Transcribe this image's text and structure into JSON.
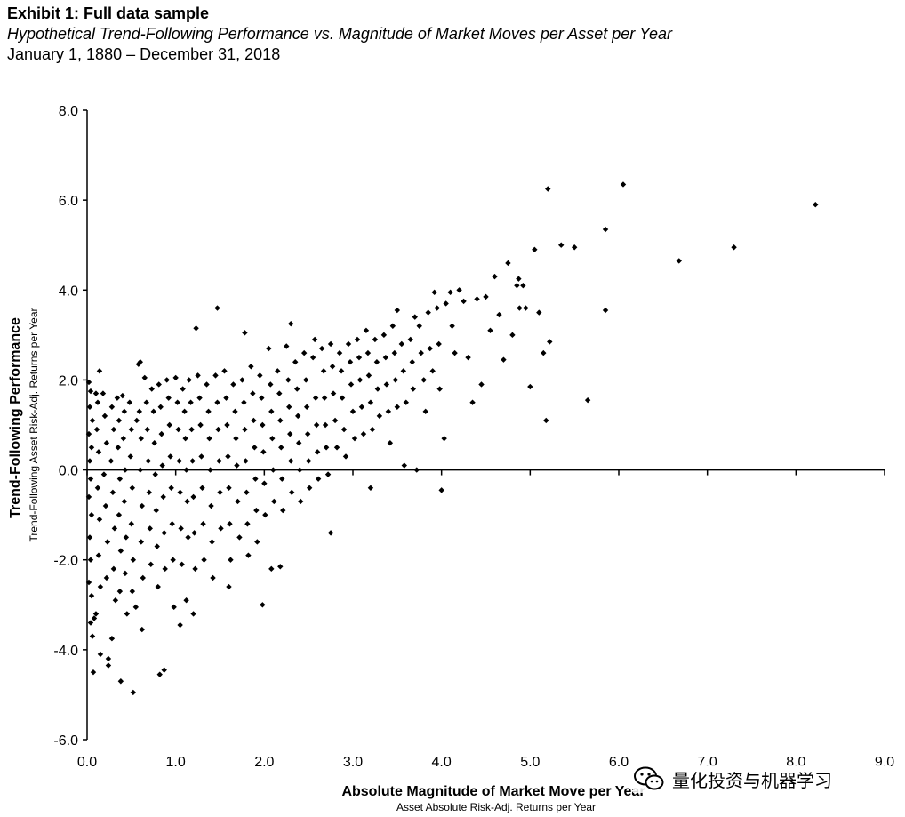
{
  "header": {
    "title": "Exhibit 1: Full data sample",
    "subtitle": "Hypothetical Trend-Following Performance vs. Magnitude of Market Moves per Asset per Year",
    "date_range": "January 1, 1880 – December 31, 2018"
  },
  "watermark": {
    "icon": "wechat-logo-icon",
    "text": "量化投资与机器学习"
  },
  "chart_data": {
    "type": "scatter",
    "xlabel": "Absolute Magnitude of Market Move per Year",
    "xlabel_sub": "Asset Absolute Risk-Adj. Returns per Year",
    "ylabel": "Trend-Following Performance",
    "ylabel_sub": "Trend-Following Asset Risk-Adj. Returns per Year",
    "xlim": [
      0,
      9
    ],
    "ylim": [
      -6,
      8
    ],
    "xticks": [
      "0.0",
      "1.0",
      "2.0",
      "3.0",
      "4.0",
      "5.0",
      "6.0",
      "7.0",
      "8.0",
      "9.0"
    ],
    "yticks": [
      "-6.0",
      "-4.0",
      "-2.0",
      "0.0",
      "2.0",
      "4.0",
      "6.0",
      "8.0"
    ],
    "grid": false,
    "legend": "none",
    "marker": "diamond",
    "color": "#000000",
    "points": [
      [
        0.02,
        1.95
      ],
      [
        0.04,
        1.75
      ],
      [
        0.03,
        1.4
      ],
      [
        0.06,
        1.1
      ],
      [
        0.02,
        0.8
      ],
      [
        0.05,
        0.5
      ],
      [
        0.03,
        0.2
      ],
      [
        0.04,
        -0.2
      ],
      [
        0.02,
        -0.6
      ],
      [
        0.05,
        -1.0
      ],
      [
        0.03,
        -1.5
      ],
      [
        0.04,
        -2.0
      ],
      [
        0.02,
        -2.5
      ],
      [
        0.05,
        -2.8
      ],
      [
        0.04,
        -3.4
      ],
      [
        0.06,
        -3.7
      ],
      [
        0.07,
        -4.5
      ],
      [
        0.08,
        -3.3
      ],
      [
        0.1,
        -3.2
      ],
      [
        0.1,
        1.7
      ],
      [
        0.12,
        1.5
      ],
      [
        0.14,
        2.2
      ],
      [
        0.11,
        0.9
      ],
      [
        0.13,
        0.4
      ],
      [
        0.12,
        -0.4
      ],
      [
        0.14,
        -1.1
      ],
      [
        0.13,
        -1.9
      ],
      [
        0.15,
        -2.6
      ],
      [
        0.15,
        -4.1
      ],
      [
        0.18,
        1.7
      ],
      [
        0.2,
        1.2
      ],
      [
        0.22,
        0.6
      ],
      [
        0.19,
        -0.1
      ],
      [
        0.21,
        -0.8
      ],
      [
        0.23,
        -1.6
      ],
      [
        0.22,
        -2.4
      ],
      [
        0.24,
        -4.2
      ],
      [
        0.24,
        -4.35
      ],
      [
        0.28,
        1.4
      ],
      [
        0.3,
        0.9
      ],
      [
        0.27,
        0.2
      ],
      [
        0.29,
        -0.5
      ],
      [
        0.31,
        -1.3
      ],
      [
        0.3,
        -2.2
      ],
      [
        0.32,
        -2.9
      ],
      [
        0.28,
        -3.75
      ],
      [
        0.34,
        1.6
      ],
      [
        0.36,
        1.1
      ],
      [
        0.35,
        0.5
      ],
      [
        0.37,
        -0.2
      ],
      [
        0.36,
        -1.0
      ],
      [
        0.38,
        -1.8
      ],
      [
        0.37,
        -2.7
      ],
      [
        0.38,
        -4.7
      ],
      [
        0.4,
        1.65
      ],
      [
        0.42,
        1.3
      ],
      [
        0.41,
        0.7
      ],
      [
        0.43,
        0.0
      ],
      [
        0.42,
        -0.7
      ],
      [
        0.44,
        -1.5
      ],
      [
        0.43,
        -2.3
      ],
      [
        0.45,
        -3.2
      ],
      [
        0.48,
        1.5
      ],
      [
        0.5,
        0.9
      ],
      [
        0.49,
        0.3
      ],
      [
        0.51,
        -0.4
      ],
      [
        0.5,
        -1.2
      ],
      [
        0.52,
        -2.0
      ],
      [
        0.51,
        -2.7
      ],
      [
        0.52,
        -4.95
      ],
      [
        0.55,
        -3.05
      ],
      [
        0.56,
        1.1
      ],
      [
        0.58,
        2.35
      ],
      [
        0.6,
        2.4
      ],
      [
        0.59,
        1.3
      ],
      [
        0.61,
        0.7
      ],
      [
        0.6,
        0.0
      ],
      [
        0.62,
        -0.8
      ],
      [
        0.61,
        -1.6
      ],
      [
        0.63,
        -2.4
      ],
      [
        0.62,
        -3.55
      ],
      [
        0.65,
        2.05
      ],
      [
        0.67,
        1.5
      ],
      [
        0.68,
        0.9
      ],
      [
        0.69,
        0.2
      ],
      [
        0.7,
        -0.5
      ],
      [
        0.71,
        -1.3
      ],
      [
        0.72,
        -2.1
      ],
      [
        0.73,
        1.8
      ],
      [
        0.75,
        1.3
      ],
      [
        0.76,
        0.6
      ],
      [
        0.77,
        -0.1
      ],
      [
        0.78,
        -0.9
      ],
      [
        0.79,
        -1.7
      ],
      [
        0.8,
        -2.6
      ],
      [
        0.82,
        -4.55
      ],
      [
        0.81,
        1.9
      ],
      [
        0.83,
        1.4
      ],
      [
        0.84,
        0.8
      ],
      [
        0.85,
        0.1
      ],
      [
        0.86,
        -0.6
      ],
      [
        0.87,
        -1.4
      ],
      [
        0.88,
        -2.2
      ],
      [
        0.87,
        -4.45
      ],
      [
        0.9,
        2.0
      ],
      [
        0.92,
        1.6
      ],
      [
        0.93,
        1.0
      ],
      [
        0.94,
        0.3
      ],
      [
        0.95,
        -0.4
      ],
      [
        0.96,
        -1.2
      ],
      [
        0.97,
        -2.0
      ],
      [
        0.98,
        -3.05
      ],
      [
        1.0,
        2.05
      ],
      [
        1.02,
        1.5
      ],
      [
        1.03,
        0.9
      ],
      [
        1.04,
        0.2
      ],
      [
        1.05,
        -0.5
      ],
      [
        1.06,
        -1.3
      ],
      [
        1.07,
        -2.1
      ],
      [
        1.05,
        -3.45
      ],
      [
        1.08,
        1.8
      ],
      [
        1.1,
        1.3
      ],
      [
        1.11,
        0.7
      ],
      [
        1.12,
        0.0
      ],
      [
        1.13,
        -0.7
      ],
      [
        1.14,
        -1.5
      ],
      [
        1.12,
        -2.9
      ],
      [
        1.15,
        2.0
      ],
      [
        1.17,
        1.5
      ],
      [
        1.18,
        0.9
      ],
      [
        1.19,
        0.2
      ],
      [
        1.2,
        -0.6
      ],
      [
        1.21,
        -1.4
      ],
      [
        1.22,
        -2.2
      ],
      [
        1.2,
        -3.2
      ],
      [
        1.23,
        3.15
      ],
      [
        1.25,
        2.1
      ],
      [
        1.27,
        1.6
      ],
      [
        1.28,
        1.0
      ],
      [
        1.29,
        0.3
      ],
      [
        1.3,
        -0.4
      ],
      [
        1.31,
        -1.2
      ],
      [
        1.32,
        -2.0
      ],
      [
        1.35,
        1.9
      ],
      [
        1.37,
        1.3
      ],
      [
        1.38,
        0.7
      ],
      [
        1.39,
        0.0
      ],
      [
        1.4,
        -0.8
      ],
      [
        1.41,
        -1.6
      ],
      [
        1.42,
        -2.4
      ],
      [
        1.47,
        3.6
      ],
      [
        1.45,
        2.1
      ],
      [
        1.47,
        1.5
      ],
      [
        1.48,
        0.9
      ],
      [
        1.49,
        0.2
      ],
      [
        1.5,
        -0.5
      ],
      [
        1.51,
        -1.3
      ],
      [
        1.55,
        2.2
      ],
      [
        1.57,
        1.6
      ],
      [
        1.58,
        1.0
      ],
      [
        1.59,
        0.3
      ],
      [
        1.6,
        -0.4
      ],
      [
        1.61,
        -1.2
      ],
      [
        1.62,
        -2.0
      ],
      [
        1.6,
        -2.6
      ],
      [
        1.65,
        1.9
      ],
      [
        1.67,
        1.3
      ],
      [
        1.68,
        0.7
      ],
      [
        1.69,
        0.1
      ],
      [
        1.7,
        -0.7
      ],
      [
        1.72,
        -1.5
      ],
      [
        1.75,
        2.0
      ],
      [
        1.77,
        1.5
      ],
      [
        1.78,
        0.9
      ],
      [
        1.79,
        0.2
      ],
      [
        1.8,
        -0.5
      ],
      [
        1.81,
        -1.2
      ],
      [
        1.82,
        -1.9
      ],
      [
        1.78,
        3.05
      ],
      [
        1.85,
        2.3
      ],
      [
        1.87,
        1.7
      ],
      [
        1.88,
        1.1
      ],
      [
        1.89,
        0.5
      ],
      [
        1.9,
        -0.2
      ],
      [
        1.91,
        -0.9
      ],
      [
        1.92,
        -1.6
      ],
      [
        1.95,
        2.1
      ],
      [
        1.97,
        1.6
      ],
      [
        1.98,
        1.0
      ],
      [
        1.99,
        0.4
      ],
      [
        2.0,
        -0.3
      ],
      [
        2.01,
        -1.0
      ],
      [
        1.98,
        -3.0
      ],
      [
        2.05,
        2.7
      ],
      [
        2.07,
        1.9
      ],
      [
        2.08,
        1.3
      ],
      [
        2.09,
        0.7
      ],
      [
        2.1,
        0.0
      ],
      [
        2.11,
        -0.7
      ],
      [
        2.08,
        -2.2
      ],
      [
        2.15,
        2.2
      ],
      [
        2.17,
        1.7
      ],
      [
        2.18,
        1.1
      ],
      [
        2.19,
        0.5
      ],
      [
        2.2,
        -0.2
      ],
      [
        2.21,
        -0.9
      ],
      [
        2.18,
        -2.15
      ],
      [
        2.25,
        2.75
      ],
      [
        2.27,
        2.0
      ],
      [
        2.28,
        1.4
      ],
      [
        2.29,
        0.8
      ],
      [
        2.3,
        0.2
      ],
      [
        2.31,
        -0.5
      ],
      [
        2.3,
        3.25
      ],
      [
        2.35,
        2.4
      ],
      [
        2.37,
        1.8
      ],
      [
        2.38,
        1.2
      ],
      [
        2.39,
        0.6
      ],
      [
        2.4,
        0.0
      ],
      [
        2.41,
        -0.7
      ],
      [
        2.45,
        2.6
      ],
      [
        2.47,
        2.0
      ],
      [
        2.48,
        1.4
      ],
      [
        2.49,
        0.8
      ],
      [
        2.5,
        0.2
      ],
      [
        2.51,
        -0.4
      ],
      [
        2.55,
        2.5
      ],
      [
        2.57,
        2.9
      ],
      [
        2.58,
        1.6
      ],
      [
        2.59,
        1.0
      ],
      [
        2.6,
        0.4
      ],
      [
        2.61,
        -0.2
      ],
      [
        2.65,
        2.7
      ],
      [
        2.67,
        2.2
      ],
      [
        2.68,
        1.6
      ],
      [
        2.69,
        1.0
      ],
      [
        2.7,
        0.5
      ],
      [
        2.72,
        -0.1
      ],
      [
        2.75,
        -1.4
      ],
      [
        2.75,
        2.8
      ],
      [
        2.77,
        2.3
      ],
      [
        2.78,
        1.7
      ],
      [
        2.8,
        1.1
      ],
      [
        2.82,
        0.5
      ],
      [
        2.85,
        2.6
      ],
      [
        2.87,
        2.2
      ],
      [
        2.88,
        1.6
      ],
      [
        2.9,
        0.9
      ],
      [
        2.92,
        0.3
      ],
      [
        2.95,
        2.8
      ],
      [
        2.97,
        2.4
      ],
      [
        2.98,
        1.9
      ],
      [
        3.0,
        1.3
      ],
      [
        3.02,
        0.7
      ],
      [
        3.05,
        2.9
      ],
      [
        3.07,
        2.5
      ],
      [
        3.08,
        2.0
      ],
      [
        3.1,
        1.4
      ],
      [
        3.12,
        0.8
      ],
      [
        3.15,
        3.1
      ],
      [
        3.17,
        2.6
      ],
      [
        3.18,
        2.1
      ],
      [
        3.2,
        1.5
      ],
      [
        3.22,
        0.9
      ],
      [
        3.2,
        -0.4
      ],
      [
        3.25,
        2.9
      ],
      [
        3.27,
        2.4
      ],
      [
        3.28,
        1.8
      ],
      [
        3.3,
        1.2
      ],
      [
        3.35,
        3.0
      ],
      [
        3.37,
        2.5
      ],
      [
        3.38,
        1.9
      ],
      [
        3.4,
        1.3
      ],
      [
        3.42,
        0.6
      ],
      [
        3.45,
        3.2
      ],
      [
        3.47,
        2.6
      ],
      [
        3.48,
        2.0
      ],
      [
        3.5,
        1.4
      ],
      [
        3.5,
        3.55
      ],
      [
        3.55,
        2.8
      ],
      [
        3.57,
        2.2
      ],
      [
        3.6,
        1.5
      ],
      [
        3.58,
        0.1
      ],
      [
        3.65,
        2.9
      ],
      [
        3.67,
        2.4
      ],
      [
        3.68,
        1.8
      ],
      [
        3.7,
        3.4
      ],
      [
        3.72,
        0.0
      ],
      [
        3.75,
        3.2
      ],
      [
        3.77,
        2.6
      ],
      [
        3.8,
        2.0
      ],
      [
        3.82,
        1.3
      ],
      [
        3.85,
        3.5
      ],
      [
        3.87,
        2.7
      ],
      [
        3.9,
        2.2
      ],
      [
        3.92,
        3.95
      ],
      [
        3.95,
        3.6
      ],
      [
        3.97,
        2.8
      ],
      [
        3.98,
        1.8
      ],
      [
        4.0,
        -0.45
      ],
      [
        4.05,
        3.7
      ],
      [
        4.03,
        0.7
      ],
      [
        4.1,
        3.95
      ],
      [
        4.12,
        3.2
      ],
      [
        4.15,
        2.6
      ],
      [
        4.2,
        4.0
      ],
      [
        4.25,
        3.75
      ],
      [
        4.3,
        2.5
      ],
      [
        4.35,
        1.5
      ],
      [
        4.4,
        3.8
      ],
      [
        4.45,
        1.9
      ],
      [
        4.5,
        3.85
      ],
      [
        4.55,
        3.1
      ],
      [
        4.6,
        4.3
      ],
      [
        4.65,
        3.45
      ],
      [
        4.7,
        2.45
      ],
      [
        4.75,
        4.6
      ],
      [
        4.8,
        3.0
      ],
      [
        4.85,
        4.1
      ],
      [
        4.87,
        4.25
      ],
      [
        4.88,
        3.6
      ],
      [
        4.92,
        4.1
      ],
      [
        4.95,
        3.6
      ],
      [
        5.0,
        1.85
      ],
      [
        5.05,
        4.9
      ],
      [
        5.1,
        3.5
      ],
      [
        5.15,
        2.6
      ],
      [
        5.18,
        1.1
      ],
      [
        5.2,
        6.25
      ],
      [
        5.22,
        2.85
      ],
      [
        5.35,
        5.0
      ],
      [
        5.5,
        4.95
      ],
      [
        5.65,
        1.55
      ],
      [
        5.85,
        5.35
      ],
      [
        5.85,
        3.55
      ],
      [
        6.05,
        6.35
      ],
      [
        6.68,
        4.65
      ],
      [
        7.3,
        4.95
      ],
      [
        8.22,
        5.9
      ]
    ]
  }
}
